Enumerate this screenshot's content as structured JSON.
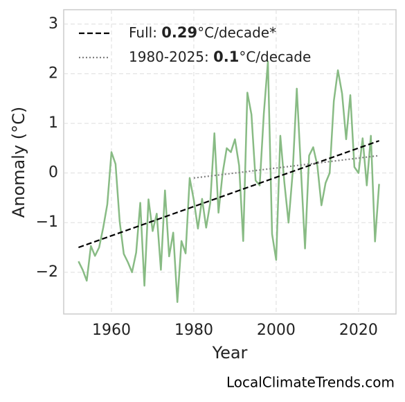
{
  "chart_data": {
    "type": "line",
    "x_label": "Year",
    "y_label": "Anomaly (°C)",
    "footer": "LocalClimateTrends.com",
    "xlim": [
      1948.4,
      2029.1
    ],
    "xticks": [
      1960,
      1980,
      2000,
      2020
    ],
    "ylim": [
      -2.84,
      3.29
    ],
    "yticks": [
      {
        "value": -2,
        "label": "−2"
      },
      {
        "value": -1,
        "label": "−1"
      },
      0,
      1,
      2,
      3
    ],
    "grid": true,
    "legend": "upper left",
    "series": [
      {
        "color": "#88bb84",
        "style": "solid",
        "x": [
          1952,
          1953,
          1954,
          1955,
          1956,
          1957,
          1958,
          1959,
          1960,
          1961,
          1962,
          1963,
          1964,
          1965,
          1966,
          1967,
          1968,
          1969,
          1970,
          1971,
          1972,
          1973,
          1974,
          1975,
          1976,
          1977,
          1978,
          1979,
          1980,
          1981,
          1982,
          1983,
          1984,
          1985,
          1986,
          1987,
          1988,
          1989,
          1990,
          1991,
          1992,
          1993,
          1994,
          1995,
          1996,
          1997,
          1998,
          1999,
          2000,
          2001,
          2002,
          2003,
          2004,
          2005,
          2006,
          2007,
          2008,
          2009,
          2010,
          2011,
          2012,
          2013,
          2014,
          2015,
          2016,
          2017,
          2018,
          2019,
          2020,
          2021,
          2022,
          2023,
          2024,
          2025
        ],
        "values": [
          -1.78,
          -1.95,
          -2.17,
          -1.47,
          -1.67,
          -1.5,
          -1.1,
          -0.63,
          0.42,
          0.18,
          -0.98,
          -1.63,
          -1.8,
          -2.0,
          -1.6,
          -0.6,
          -2.27,
          -0.53,
          -1.17,
          -0.82,
          -1.95,
          -0.35,
          -1.68,
          -1.2,
          -2.6,
          -1.37,
          -1.62,
          -0.1,
          -0.55,
          -1.12,
          -0.52,
          -1.1,
          -0.6,
          0.8,
          -0.8,
          0.0,
          0.5,
          0.42,
          0.68,
          0.15,
          -1.37,
          1.62,
          1.18,
          -0.15,
          -0.25,
          1.2,
          2.25,
          -1.23,
          -1.75,
          0.75,
          -0.2,
          -1.0,
          0.0,
          1.7,
          0.1,
          -1.52,
          0.35,
          0.52,
          0.15,
          -0.65,
          -0.2,
          0.0,
          1.45,
          2.07,
          1.6,
          0.68,
          1.57,
          0.12,
          0.0,
          0.7,
          -0.25,
          0.75,
          -1.38,
          -0.22
        ]
      },
      {
        "name": "Full: 0.29°C/decade*",
        "color": "#000000",
        "style": "dashed",
        "x": [
          1952,
          2025
        ],
        "values": [
          -1.5,
          0.65
        ]
      },
      {
        "name": "1980-2025: 0.1°C/decade",
        "color": "#808080",
        "style": "dotted",
        "x": [
          1980,
          2025
        ],
        "values": [
          -0.1,
          0.35
        ]
      }
    ]
  }
}
